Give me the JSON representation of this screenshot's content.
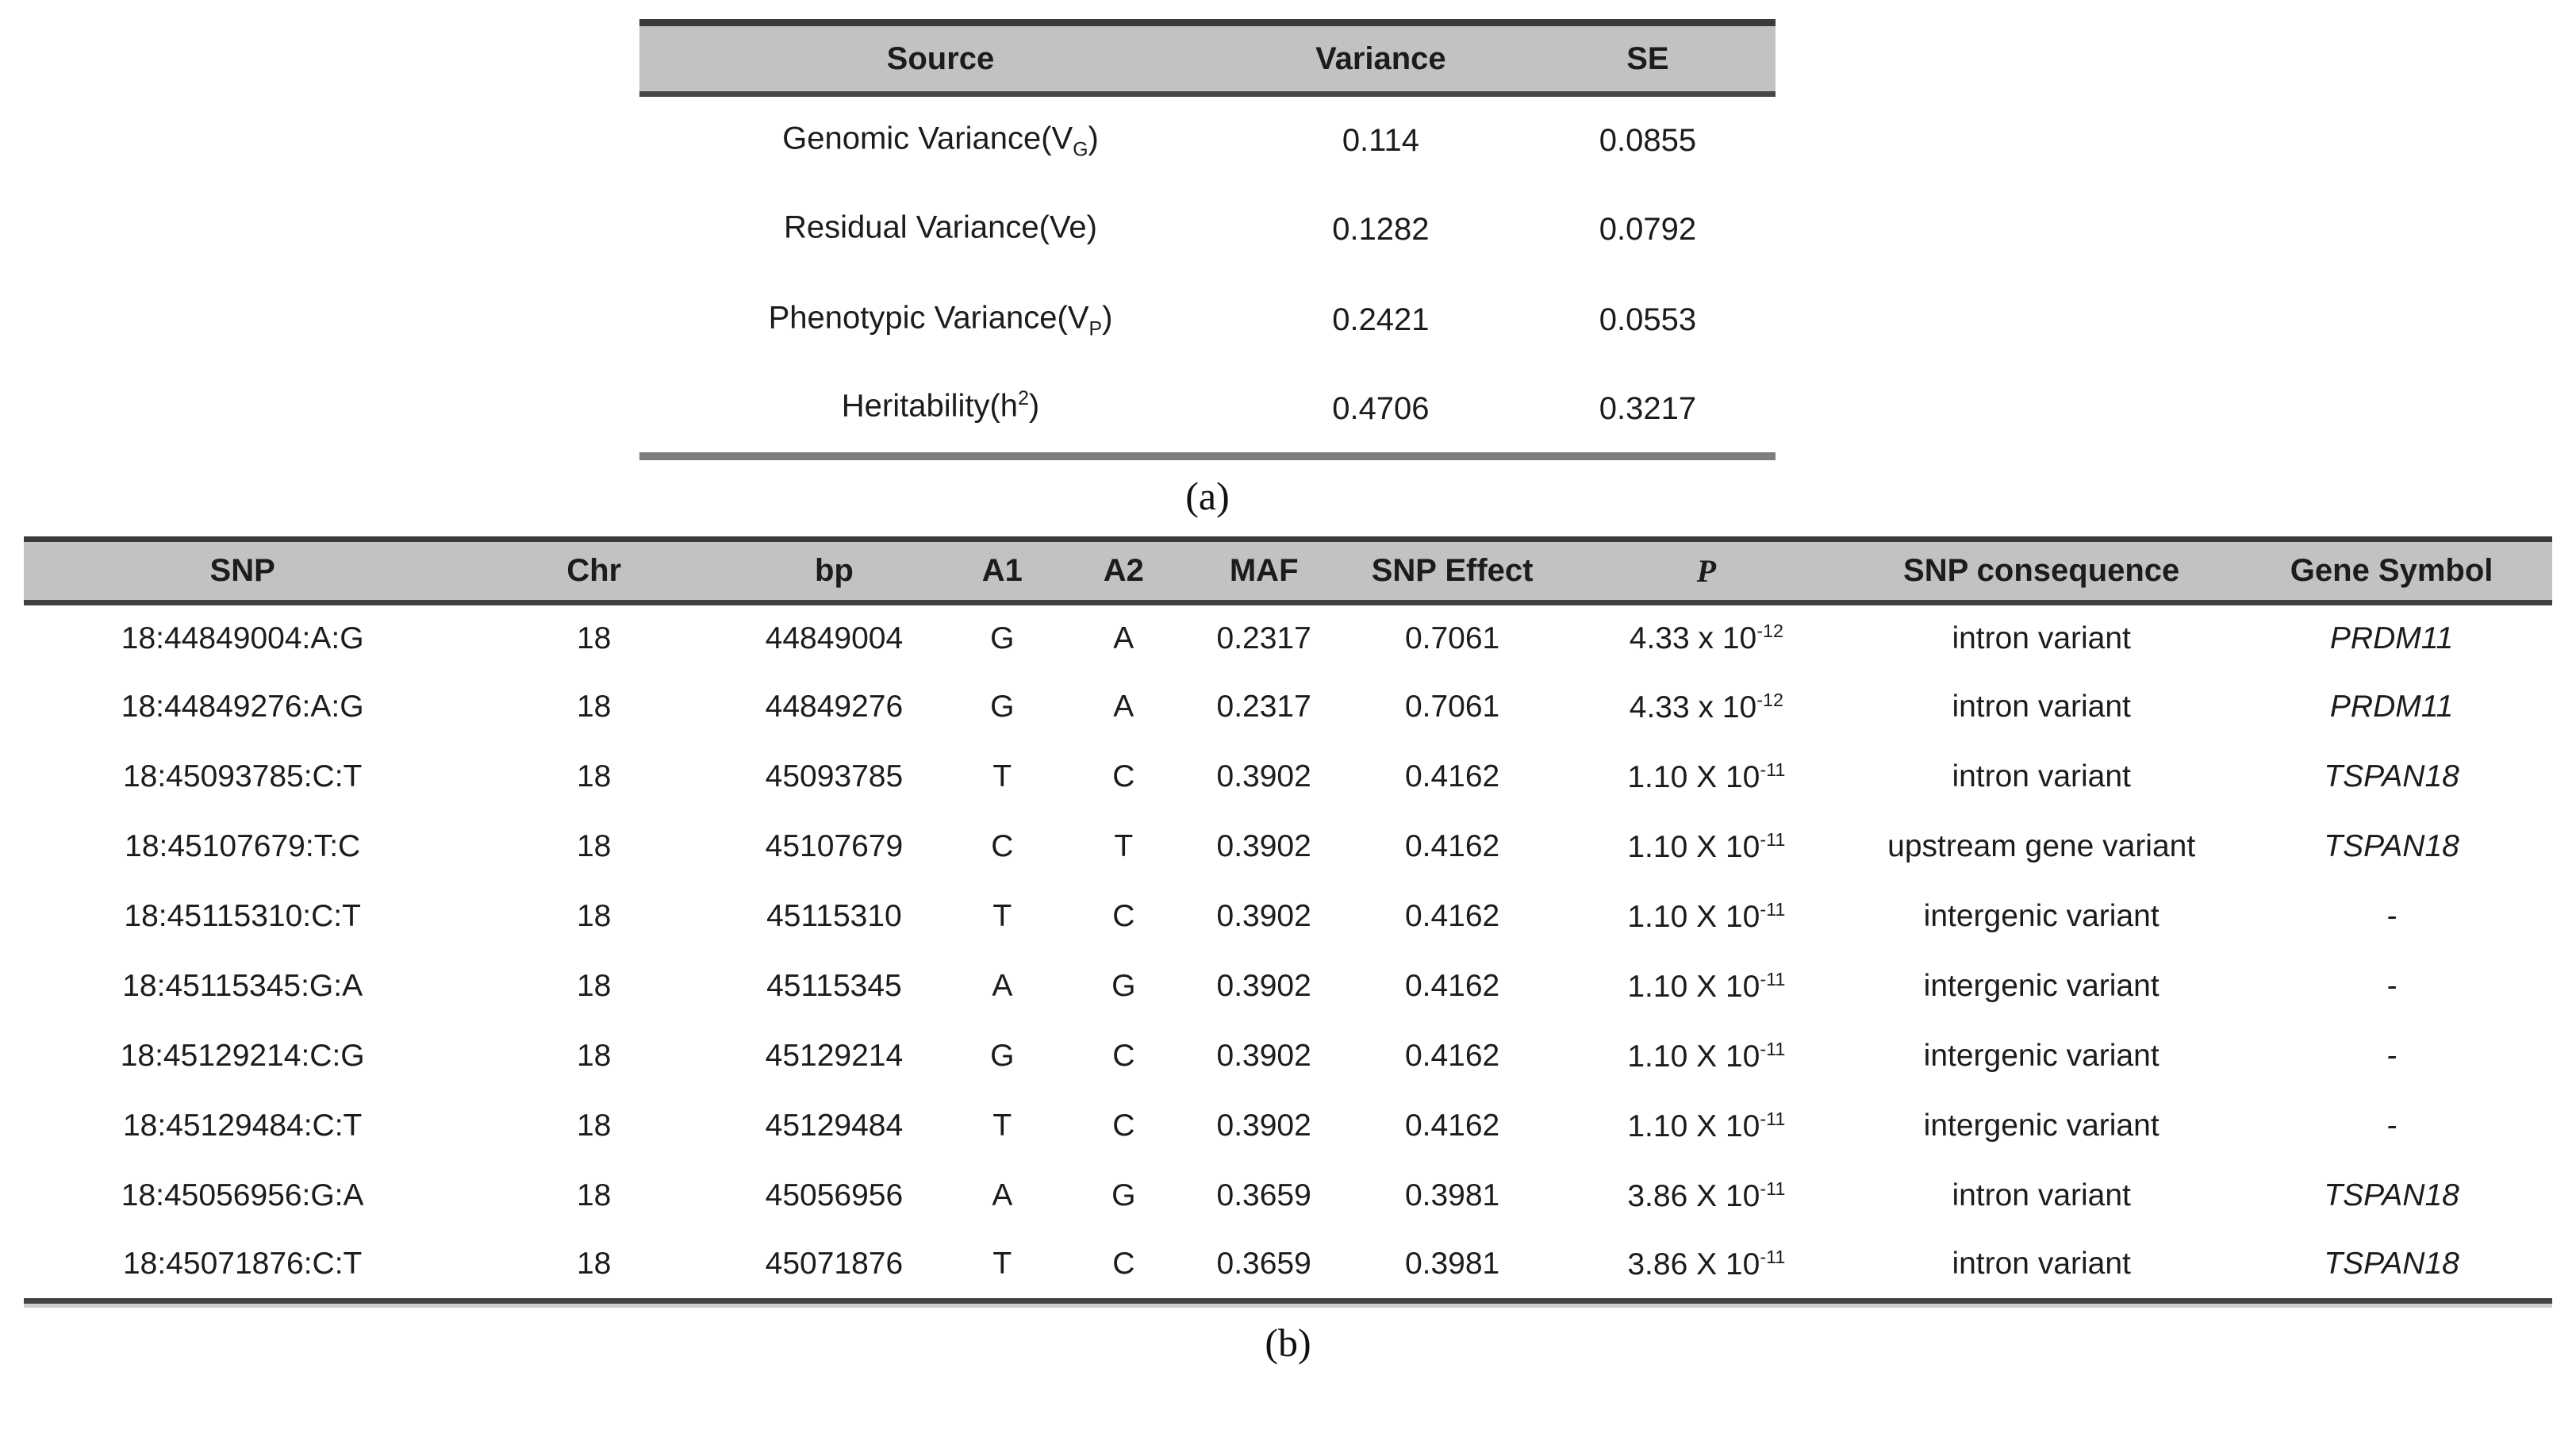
{
  "colors": {
    "header_bg": "#c2c2c2",
    "border_dark": "#3a3a3a",
    "border_mid": "#8e8e8e",
    "border_a_bottom": "#7d7d7d",
    "text": "#1c1c1c"
  },
  "table_a": {
    "caption": "(a)",
    "headers": {
      "source": "Source",
      "variance": "Variance",
      "se": "SE"
    },
    "rows": [
      {
        "label_pre": "Genomic Variance(V",
        "label_sub": "G",
        "label_sup": "",
        "label_post": ")",
        "variance": "0.114",
        "se": "0.0855"
      },
      {
        "label_pre": "Residual Variance(Ve)",
        "label_sub": "",
        "label_sup": "",
        "label_post": "",
        "variance": "0.1282",
        "se": "0.0792"
      },
      {
        "label_pre": "Phenotypic Variance(V",
        "label_sub": "P",
        "label_sup": "",
        "label_post": ")",
        "variance": "0.2421",
        "se": "0.0553"
      },
      {
        "label_pre": "Heritability(h",
        "label_sub": "",
        "label_sup": "2",
        "label_post": ")",
        "variance": "0.4706",
        "se": "0.3217"
      }
    ]
  },
  "table_b": {
    "caption": "(b)",
    "headers": {
      "snp": "SNP",
      "chr": "Chr",
      "bp": "bp",
      "a1": "A1",
      "a2": "A2",
      "maf": "MAF",
      "effect": "SNP Effect",
      "p": "P",
      "consequence": "SNP consequence",
      "gene": "Gene Symbol"
    },
    "rows": [
      {
        "snp": "18:44849004:A:G",
        "chr": "18",
        "bp": "44849004",
        "a1": "G",
        "a2": "A",
        "maf": "0.2317",
        "effect": "0.7061",
        "p_base": "4.33 x 10",
        "p_exp": "-12",
        "consequence": "intron variant",
        "gene": "PRDM11"
      },
      {
        "snp": "18:44849276:A:G",
        "chr": "18",
        "bp": "44849276",
        "a1": "G",
        "a2": "A",
        "maf": "0.2317",
        "effect": "0.7061",
        "p_base": "4.33 x 10",
        "p_exp": "-12",
        "consequence": "intron variant",
        "gene": "PRDM11"
      },
      {
        "snp": "18:45093785:C:T",
        "chr": "18",
        "bp": "45093785",
        "a1": "T",
        "a2": "C",
        "maf": "0.3902",
        "effect": "0.4162",
        "p_base": "1.10 X 10",
        "p_exp": "-11",
        "consequence": "intron variant",
        "gene": "TSPAN18"
      },
      {
        "snp": "18:45107679:T:C",
        "chr": "18",
        "bp": "45107679",
        "a1": "C",
        "a2": "T",
        "maf": "0.3902",
        "effect": "0.4162",
        "p_base": "1.10 X 10",
        "p_exp": "-11",
        "consequence": "upstream gene variant",
        "gene": "TSPAN18"
      },
      {
        "snp": "18:45115310:C:T",
        "chr": "18",
        "bp": "45115310",
        "a1": "T",
        "a2": "C",
        "maf": "0.3902",
        "effect": "0.4162",
        "p_base": "1.10 X 10",
        "p_exp": "-11",
        "consequence": "intergenic variant",
        "gene": "-"
      },
      {
        "snp": "18:45115345:G:A",
        "chr": "18",
        "bp": "45115345",
        "a1": "A",
        "a2": "G",
        "maf": "0.3902",
        "effect": "0.4162",
        "p_base": "1.10 X 10",
        "p_exp": "-11",
        "consequence": "intergenic variant",
        "gene": "-"
      },
      {
        "snp": "18:45129214:C:G",
        "chr": "18",
        "bp": "45129214",
        "a1": "G",
        "a2": "C",
        "maf": "0.3902",
        "effect": "0.4162",
        "p_base": "1.10 X 10",
        "p_exp": "-11",
        "consequence": "intergenic variant",
        "gene": "-"
      },
      {
        "snp": "18:45129484:C:T",
        "chr": "18",
        "bp": "45129484",
        "a1": "T",
        "a2": "C",
        "maf": "0.3902",
        "effect": "0.4162",
        "p_base": "1.10 X 10",
        "p_exp": "-11",
        "consequence": "intergenic variant",
        "gene": "-"
      },
      {
        "snp": "18:45056956:G:A",
        "chr": "18",
        "bp": "45056956",
        "a1": "A",
        "a2": "G",
        "maf": "0.3659",
        "effect": "0.3981",
        "p_base": "3.86 X 10",
        "p_exp": "-11",
        "consequence": "intron variant",
        "gene": "TSPAN18"
      },
      {
        "snp": "18:45071876:C:T",
        "chr": "18",
        "bp": "45071876",
        "a1": "T",
        "a2": "C",
        "maf": "0.3659",
        "effect": "0.3981",
        "p_base": "3.86 X 10",
        "p_exp": "-11",
        "consequence": "intron variant",
        "gene": "TSPAN18"
      }
    ]
  }
}
